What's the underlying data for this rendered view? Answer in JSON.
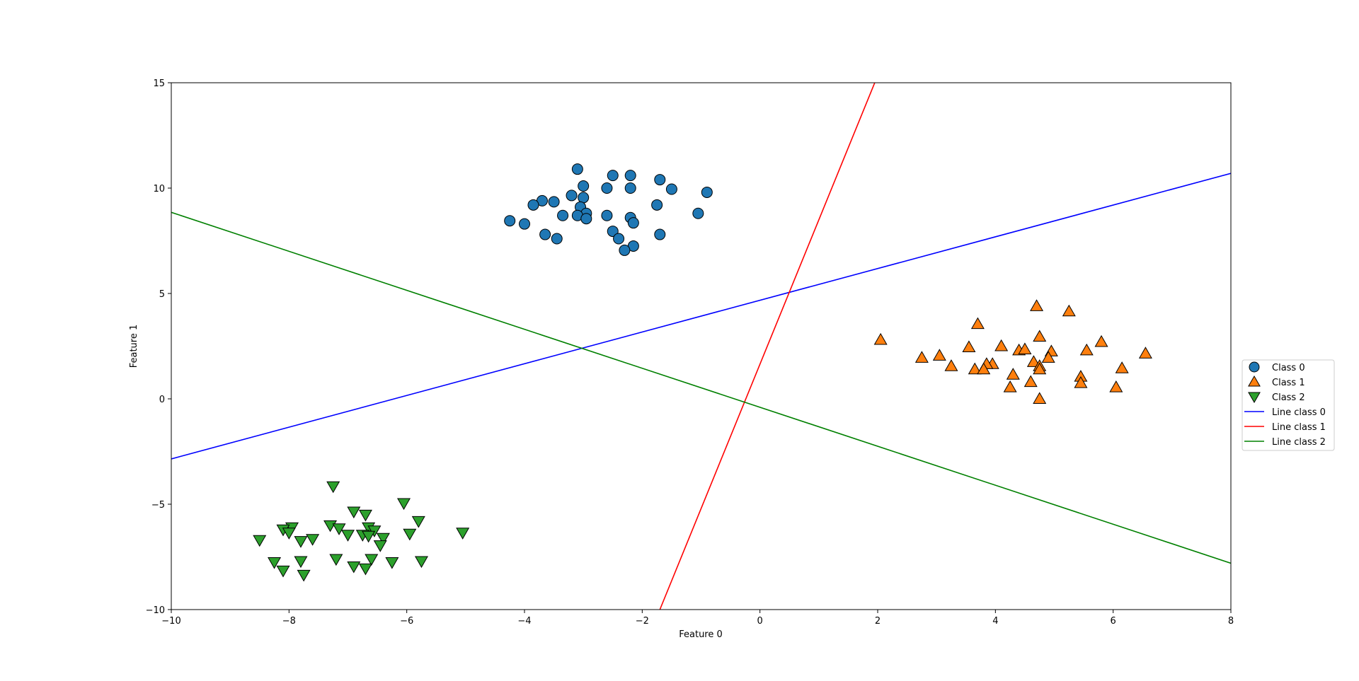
{
  "chart_data": {
    "type": "scatter",
    "title": "",
    "xlabel": "Feature 0",
    "ylabel": "Feature 1",
    "xlim": [
      -10,
      8
    ],
    "ylim": [
      -10,
      15
    ],
    "xticks": [
      -10,
      -8,
      -6,
      -4,
      -2,
      0,
      2,
      4,
      6,
      8
    ],
    "yticks": [
      -10,
      -5,
      0,
      5,
      10,
      15
    ],
    "xtick_labels": [
      "−10",
      "−8",
      "−6",
      "−4",
      "−2",
      "0",
      "2",
      "4",
      "6",
      "8"
    ],
    "ytick_labels": [
      "−10",
      "−5",
      "0",
      "5",
      "10",
      "15"
    ],
    "grid": false,
    "legend_position": "center-right-outside",
    "series": [
      {
        "name": "Class 0",
        "kind": "points",
        "marker": "circle",
        "color": "#1f77b4",
        "points": [
          [
            -3.1,
            10.9
          ],
          [
            -2.5,
            10.6
          ],
          [
            -2.2,
            10.6
          ],
          [
            -1.7,
            10.4
          ],
          [
            -3.0,
            10.1
          ],
          [
            -2.6,
            10.0
          ],
          [
            -2.2,
            10.0
          ],
          [
            -1.5,
            9.95
          ],
          [
            -0.9,
            9.8
          ],
          [
            -3.2,
            9.65
          ],
          [
            -3.0,
            9.55
          ],
          [
            -3.7,
            9.4
          ],
          [
            -3.5,
            9.35
          ],
          [
            -3.85,
            9.2
          ],
          [
            -1.75,
            9.2
          ],
          [
            -3.05,
            9.1
          ],
          [
            -2.95,
            8.8
          ],
          [
            -3.35,
            8.7
          ],
          [
            -3.1,
            8.7
          ],
          [
            -2.6,
            8.7
          ],
          [
            -2.2,
            8.6
          ],
          [
            -2.95,
            8.55
          ],
          [
            -1.05,
            8.8
          ],
          [
            -4.25,
            8.45
          ],
          [
            -4.0,
            8.3
          ],
          [
            -2.15,
            8.35
          ],
          [
            -2.5,
            7.95
          ],
          [
            -3.65,
            7.8
          ],
          [
            -1.7,
            7.8
          ],
          [
            -3.45,
            7.6
          ],
          [
            -2.4,
            7.6
          ],
          [
            -2.15,
            7.25
          ],
          [
            -2.3,
            7.05
          ]
        ]
      },
      {
        "name": "Class 1",
        "kind": "points",
        "marker": "triangle-up",
        "color": "#ff7f0e",
        "points": [
          [
            4.7,
            4.4
          ],
          [
            5.25,
            4.15
          ],
          [
            3.7,
            3.55
          ],
          [
            4.75,
            2.95
          ],
          [
            2.05,
            2.8
          ],
          [
            5.8,
            2.7
          ],
          [
            3.55,
            2.45
          ],
          [
            4.1,
            2.5
          ],
          [
            4.4,
            2.3
          ],
          [
            4.5,
            2.35
          ],
          [
            4.95,
            2.25
          ],
          [
            5.55,
            2.3
          ],
          [
            6.55,
            2.15
          ],
          [
            3.05,
            2.05
          ],
          [
            4.9,
            1.95
          ],
          [
            2.75,
            1.95
          ],
          [
            4.65,
            1.75
          ],
          [
            3.95,
            1.65
          ],
          [
            3.85,
            1.65
          ],
          [
            4.75,
            1.55
          ],
          [
            3.25,
            1.55
          ],
          [
            3.65,
            1.4
          ],
          [
            3.8,
            1.4
          ],
          [
            4.75,
            1.4
          ],
          [
            6.15,
            1.45
          ],
          [
            4.3,
            1.15
          ],
          [
            5.45,
            1.05
          ],
          [
            4.6,
            0.8
          ],
          [
            5.45,
            0.75
          ],
          [
            4.25,
            0.55
          ],
          [
            6.05,
            0.55
          ],
          [
            4.75,
            0.0
          ]
        ]
      },
      {
        "name": "Class 2",
        "kind": "points",
        "marker": "triangle-down",
        "color": "#2ca02c",
        "points": [
          [
            -7.25,
            -4.15
          ],
          [
            -6.05,
            -4.95
          ],
          [
            -6.9,
            -5.35
          ],
          [
            -6.7,
            -5.5
          ],
          [
            -5.8,
            -5.8
          ],
          [
            -7.3,
            -6.0
          ],
          [
            -7.95,
            -6.1
          ],
          [
            -8.1,
            -6.2
          ],
          [
            -7.15,
            -6.15
          ],
          [
            -6.65,
            -6.1
          ],
          [
            -6.55,
            -6.25
          ],
          [
            -8.0,
            -6.35
          ],
          [
            -7.0,
            -6.45
          ],
          [
            -6.75,
            -6.45
          ],
          [
            -6.65,
            -6.5
          ],
          [
            -5.05,
            -6.35
          ],
          [
            -5.95,
            -6.4
          ],
          [
            -6.4,
            -6.6
          ],
          [
            -8.5,
            -6.7
          ],
          [
            -7.8,
            -6.75
          ],
          [
            -7.6,
            -6.65
          ],
          [
            -6.45,
            -6.95
          ],
          [
            -7.2,
            -7.6
          ],
          [
            -6.6,
            -7.6
          ],
          [
            -8.25,
            -7.75
          ],
          [
            -7.8,
            -7.7
          ],
          [
            -6.25,
            -7.75
          ],
          [
            -5.75,
            -7.7
          ],
          [
            -6.9,
            -7.95
          ],
          [
            -6.7,
            -8.05
          ],
          [
            -8.1,
            -8.15
          ],
          [
            -7.75,
            -8.35
          ]
        ]
      },
      {
        "name": "Line class 0",
        "kind": "line",
        "color": "#0000ff",
        "x": [
          -10,
          8
        ],
        "y": [
          -2.85,
          10.7
        ]
      },
      {
        "name": "Line class 1",
        "kind": "line",
        "color": "#ff0000",
        "x": [
          -1.7,
          1.95
        ],
        "y": [
          -10,
          15
        ]
      },
      {
        "name": "Line class 2",
        "kind": "line",
        "color": "#008000",
        "x": [
          -10,
          8
        ],
        "y": [
          8.85,
          -7.8
        ]
      }
    ]
  }
}
